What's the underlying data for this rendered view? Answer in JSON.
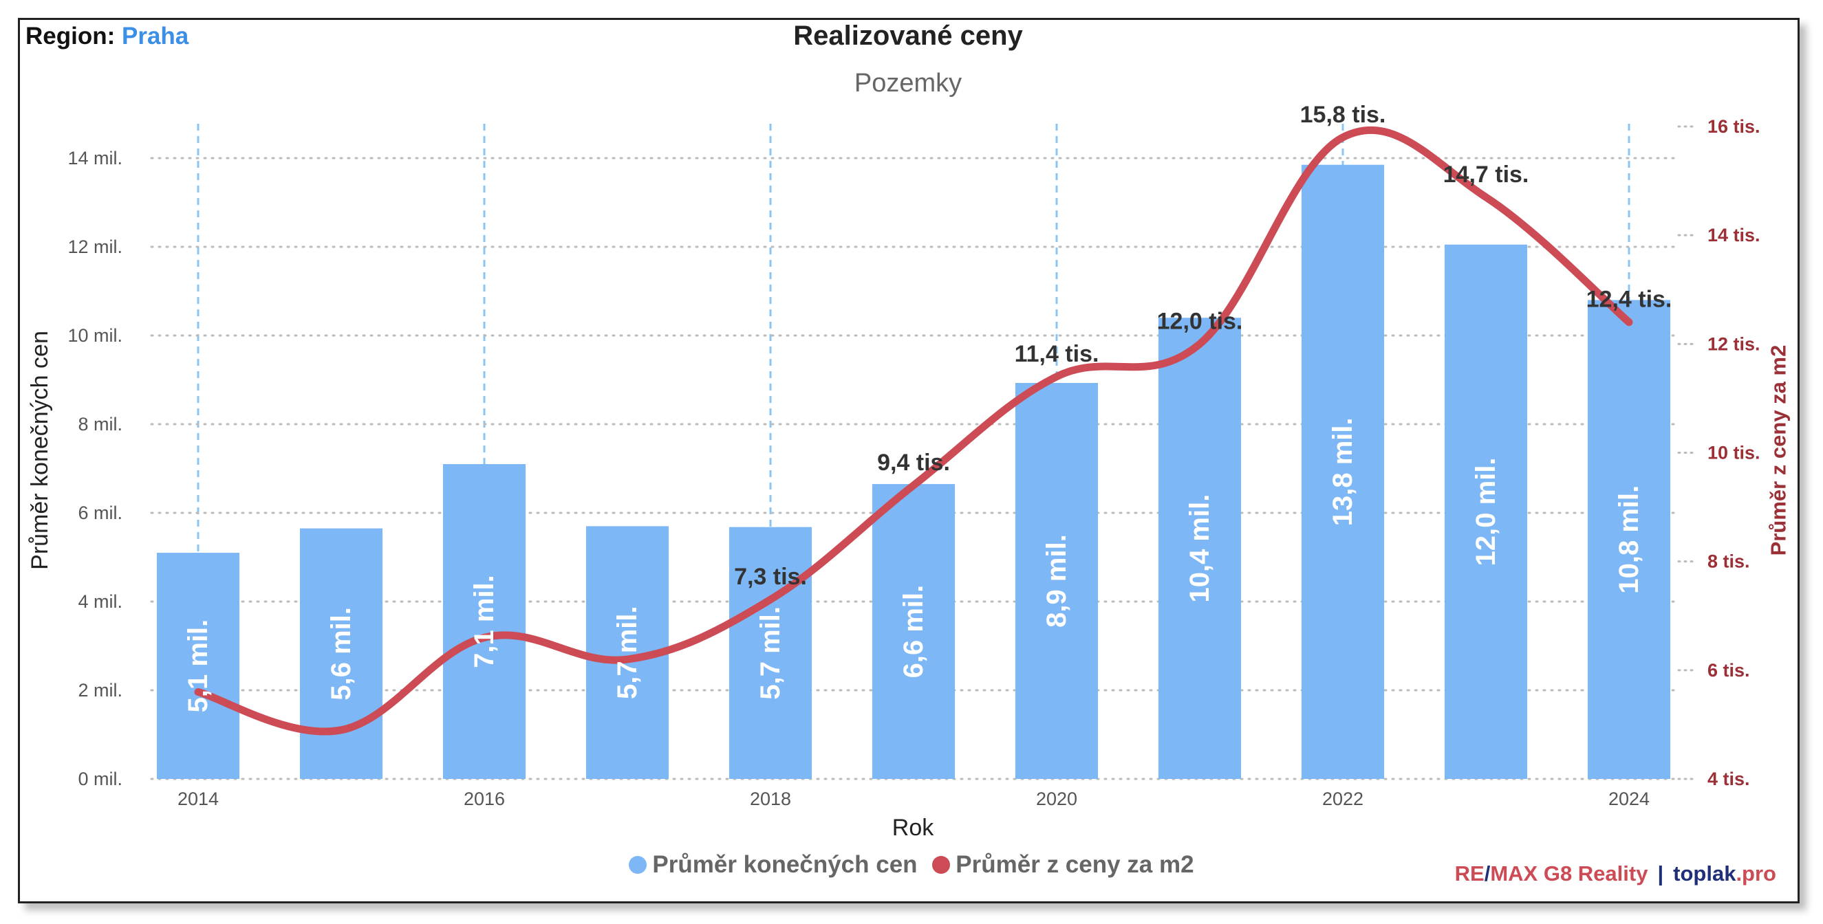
{
  "header": {
    "region_label": "Region:",
    "region_value": "Praha"
  },
  "branding": {
    "remax_part1": "RE",
    "remax_slash": "/",
    "remax_part2": "MAX G8 Reality",
    "separator": "|",
    "toplak": "toplak",
    "toplak_suffix": ".pro"
  },
  "colors": {
    "bar": "#7eb7f5",
    "line": "#cc4b55",
    "right_axis": "#9b3037",
    "region_value": "#3b8fe6",
    "brand_navy": "#1f2f7a"
  },
  "chart_data": {
    "type": "bar",
    "title": "Realizované ceny",
    "subtitle": "Pozemky",
    "xlabel": "Rok",
    "ylabel": "Průměr konečných cen",
    "y2label": "Průměr z ceny za m2",
    "categories": [
      2014,
      2015,
      2016,
      2017,
      2018,
      2019,
      2020,
      2021,
      2022,
      2023,
      2024
    ],
    "x_tick_labels": [
      "2014",
      "2016",
      "2018",
      "2020",
      "2022",
      "2024"
    ],
    "x_tick_values": [
      2014,
      2016,
      2018,
      2020,
      2022,
      2024
    ],
    "ylim": [
      0,
      14
    ],
    "y_ticks": [
      0,
      2,
      4,
      6,
      8,
      10,
      12,
      14
    ],
    "y_tick_labels": [
      "0 mil.",
      "2 mil.",
      "4 mil.",
      "6 mil.",
      "8 mil.",
      "10 mil.",
      "12 mil.",
      "14 mil."
    ],
    "y2lim": [
      4,
      16
    ],
    "y2_ticks": [
      4,
      6,
      8,
      10,
      12,
      14,
      16
    ],
    "y2_tick_labels": [
      "4 tis.",
      "6 tis.",
      "8 tis.",
      "10 tis.",
      "12 tis.",
      "14 tis.",
      "16 tis."
    ],
    "grid": "dotted horizontal, dashed vertical at labeled years",
    "series": [
      {
        "name": "Průměr konečných cen",
        "type": "bar",
        "axis": "left",
        "values": [
          5.1,
          5.65,
          7.1,
          5.7,
          5.68,
          6.65,
          8.93,
          10.4,
          13.85,
          12.05,
          10.8
        ],
        "labels": [
          "5,1 mil.",
          "5,6 mil.",
          "7,1 mil.",
          "5,7 mil.",
          "5,7 mil.",
          "6,6 mil.",
          "8,9 mil.",
          "10,4 mil.",
          "13,8 mil.",
          "12,0 mil.",
          "10,8 mil."
        ]
      },
      {
        "name": "Průměr z ceny za m2",
        "type": "line",
        "axis": "right",
        "values": [
          5.6,
          4.9,
          6.6,
          6.2,
          7.3,
          9.4,
          11.4,
          12.0,
          15.8,
          14.7,
          12.4
        ],
        "labels": [
          "",
          "",
          "",
          "",
          "7,3 tis.",
          "9,4 tis.",
          "11,4 tis.",
          "12,0 tis.",
          "15,8 tis.",
          "14,7 tis.",
          "12,4 tis."
        ]
      }
    ],
    "legend_position": "bottom"
  }
}
